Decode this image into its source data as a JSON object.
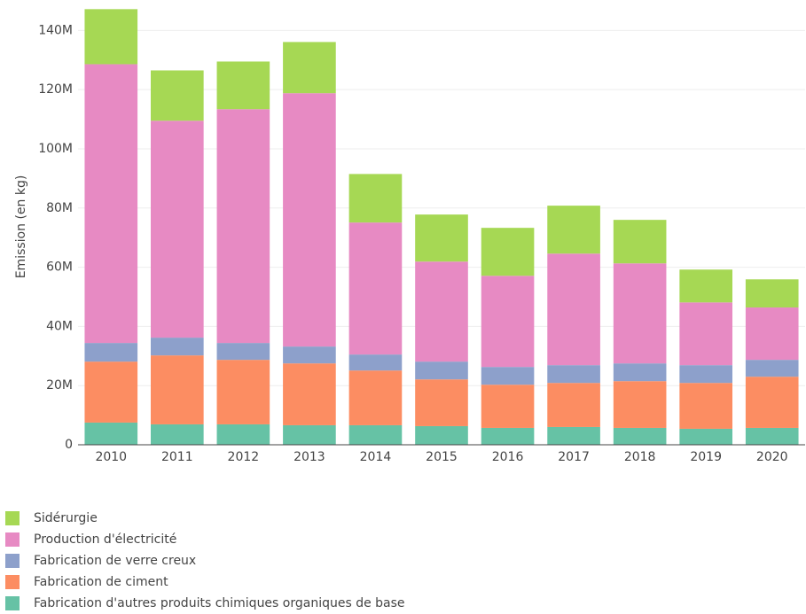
{
  "chart_data": {
    "type": "stacked_bar",
    "y_label": "Emission (en kg)",
    "categories": [
      "2010",
      "2011",
      "2012",
      "2013",
      "2014",
      "2015",
      "2016",
      "2017",
      "2018",
      "2019",
      "2020"
    ],
    "series": [
      {
        "name": "Fabrication d'autres produits chimiques organiques de base",
        "color": "#66c2a5",
        "values": [
          7500000,
          6900000,
          6900000,
          6600000,
          6600000,
          6300000,
          5700000,
          6000000,
          5700000,
          5400000,
          5700000
        ]
      },
      {
        "name": "Fabrication de ciment",
        "color": "#fc8d62",
        "values": [
          20600000,
          23300000,
          21800000,
          20900000,
          18500000,
          15800000,
          14600000,
          14900000,
          15800000,
          15500000,
          17300000
        ]
      },
      {
        "name": "Fabrication de verre creux",
        "color": "#8da0cb",
        "values": [
          6300000,
          6000000,
          5700000,
          5700000,
          5400000,
          6000000,
          6000000,
          6000000,
          6000000,
          6000000,
          5700000
        ]
      },
      {
        "name": "Production d'électricité",
        "color": "#e78ac3",
        "values": [
          94200000,
          73300000,
          79000000,
          85600000,
          44600000,
          33800000,
          30800000,
          37700000,
          33800000,
          21200000,
          17700000
        ]
      },
      {
        "name": "Sidérurgie",
        "color": "#a6d854",
        "values": [
          18600000,
          17000000,
          16100000,
          17300000,
          16400000,
          15900000,
          16200000,
          16200000,
          14700000,
          11100000,
          9500000
        ]
      }
    ],
    "ylim": [
      0,
      147000000
    ],
    "yticks": [
      0,
      {
        "value": 20000000,
        "label": "20M"
      },
      {
        "value": 40000000,
        "label": "40M"
      },
      {
        "value": 60000000,
        "label": "60M"
      },
      {
        "value": 80000000,
        "label": "80M"
      },
      {
        "value": 100000000,
        "label": "100M"
      },
      {
        "value": 120000000,
        "label": "120M"
      },
      {
        "value": 140000000,
        "label": "140M"
      }
    ],
    "grid": true
  }
}
